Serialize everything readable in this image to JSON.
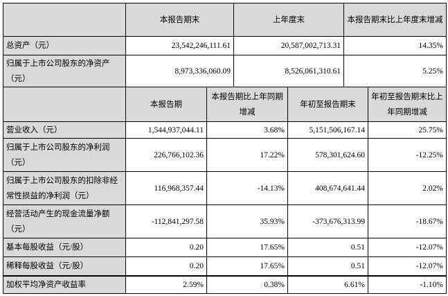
{
  "balance": {
    "headers": [
      "",
      "本报告期末",
      "上年度末",
      "本报告期末比上年度末增减"
    ],
    "rows": [
      [
        "总资产（元）",
        "23,542,246,111.61",
        "20,587,002,713.31",
        "14.35%"
      ],
      [
        "归属于上市公司股东的净资产（元）",
        "8,973,336,060.09",
        "8,526,061,310.61",
        "5.25%"
      ]
    ]
  },
  "income": {
    "headers": [
      "",
      "本报告期",
      "本报告期比上年同期增减",
      "年初至报告期末",
      "年初至报告期末比上年同期增减"
    ],
    "rows": [
      [
        "营业收入（元）",
        "1,544,937,044.11",
        "3.68%",
        "5,151,506,167.14",
        "25.75%"
      ],
      [
        "归属于上市公司股东的净利润（元）",
        "226,766,102.36",
        "17.22%",
        "578,301,624.60",
        "-12.25%"
      ],
      [
        "归属于上市公司股东的扣除非经常性损益的净利润（元）",
        "116,968,357.44",
        "-14.13%",
        "408,674,641.44",
        "2.02%"
      ],
      [
        "经营活动产生的现金流量净额（元）",
        "-112,841,297.58",
        "35.93%",
        "-373,676,313.99",
        "-18.67%"
      ],
      [
        "基本每股收益（元/股）",
        "0.20",
        "17.65%",
        "0.51",
        "-12.07%"
      ],
      [
        "稀释每股收益（元/股）",
        "0.20",
        "17.65%",
        "0.51",
        "-12.07%"
      ],
      [
        "加权平均净资产收益率",
        "2.59%",
        "0.38%",
        "6.61%",
        "-1.10%"
      ]
    ]
  }
}
